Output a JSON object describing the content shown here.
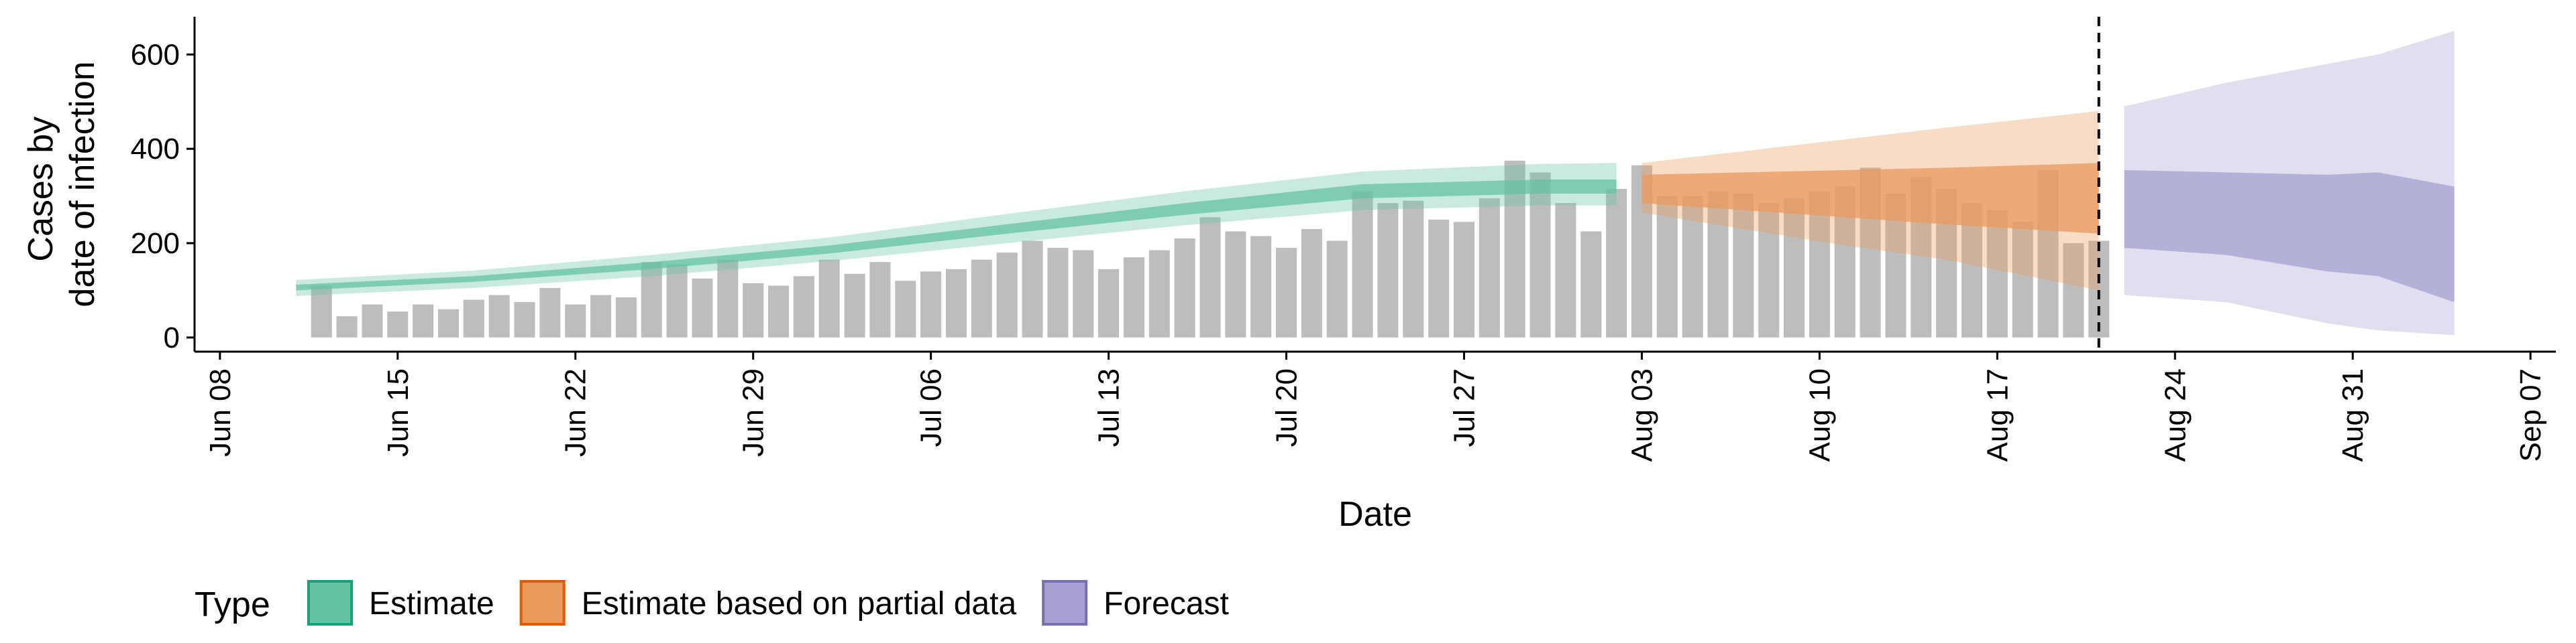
{
  "chart_data": {
    "type": "bar",
    "title": "",
    "xlabel": "Date",
    "ylabel_lines": [
      "Cases by",
      "date of infection"
    ],
    "x_ticks": [
      "Jun 08",
      "Jun 15",
      "Jun 22",
      "Jun 29",
      "Jul 06",
      "Jul 13",
      "Jul 20",
      "Jul 27",
      "Aug 03",
      "Aug 10",
      "Aug 17",
      "Aug 24",
      "Aug 31",
      "Sep 07"
    ],
    "x_tick_dates": [
      "2020-06-08",
      "2020-06-15",
      "2020-06-22",
      "2020-06-29",
      "2020-07-06",
      "2020-07-13",
      "2020-07-20",
      "2020-07-27",
      "2020-08-03",
      "2020-08-10",
      "2020-08-17",
      "2020-08-24",
      "2020-08-31",
      "2020-09-07"
    ],
    "y_ticks": [
      0,
      200,
      400,
      600
    ],
    "xlim": [
      "2020-06-07",
      "2020-09-08"
    ],
    "ylim": [
      -30,
      680
    ],
    "forecast_date": "2020-08-21",
    "legend": {
      "title": "Type",
      "position": "bottom",
      "entries": [
        {
          "label": "Estimate",
          "fill": "#66c2a5",
          "stroke": "#1b9e77"
        },
        {
          "label": "Estimate based on partial data",
          "fill": "#ea9a5d",
          "stroke": "#d95f02"
        },
        {
          "label": "Forecast",
          "fill": "#a6a1d2",
          "stroke": "#7570b3"
        }
      ]
    },
    "bars": {
      "color": "#bdbdbd",
      "dates": [
        "2020-06-12",
        "2020-06-13",
        "2020-06-14",
        "2020-06-15",
        "2020-06-16",
        "2020-06-17",
        "2020-06-18",
        "2020-06-19",
        "2020-06-20",
        "2020-06-21",
        "2020-06-22",
        "2020-06-23",
        "2020-06-24",
        "2020-06-25",
        "2020-06-26",
        "2020-06-27",
        "2020-06-28",
        "2020-06-29",
        "2020-06-30",
        "2020-07-01",
        "2020-07-02",
        "2020-07-03",
        "2020-07-04",
        "2020-07-05",
        "2020-07-06",
        "2020-07-07",
        "2020-07-08",
        "2020-07-09",
        "2020-07-10",
        "2020-07-11",
        "2020-07-12",
        "2020-07-13",
        "2020-07-14",
        "2020-07-15",
        "2020-07-16",
        "2020-07-17",
        "2020-07-18",
        "2020-07-19",
        "2020-07-20",
        "2020-07-21",
        "2020-07-22",
        "2020-07-23",
        "2020-07-24",
        "2020-07-25",
        "2020-07-26",
        "2020-07-27",
        "2020-07-28",
        "2020-07-29",
        "2020-07-30",
        "2020-07-31",
        "2020-08-01",
        "2020-08-02",
        "2020-08-03",
        "2020-08-04",
        "2020-08-05",
        "2020-08-06",
        "2020-08-07",
        "2020-08-08",
        "2020-08-09",
        "2020-08-10",
        "2020-08-11",
        "2020-08-12",
        "2020-08-13",
        "2020-08-14",
        "2020-08-15",
        "2020-08-16",
        "2020-08-17",
        "2020-08-18",
        "2020-08-19",
        "2020-08-20",
        "2020-08-21"
      ],
      "values": [
        110,
        45,
        70,
        55,
        70,
        60,
        80,
        90,
        75,
        105,
        70,
        90,
        85,
        160,
        155,
        125,
        165,
        115,
        110,
        130,
        165,
        135,
        160,
        120,
        140,
        145,
        165,
        180,
        205,
        190,
        185,
        145,
        170,
        185,
        210,
        255,
        225,
        215,
        190,
        230,
        205,
        310,
        285,
        290,
        250,
        245,
        295,
        375,
        350,
        285,
        225,
        315,
        365,
        300,
        300,
        310,
        305,
        285,
        295,
        310,
        320,
        360,
        305,
        340,
        315,
        285,
        270,
        245,
        355,
        200,
        205
      ]
    },
    "series": [
      {
        "name": "Estimate",
        "dates": [
          "2020-06-11",
          "2020-06-18",
          "2020-06-25",
          "2020-07-02",
          "2020-07-09",
          "2020-07-16",
          "2020-07-23",
          "2020-07-30",
          "2020-08-02"
        ],
        "inner_low": [
          100,
          118,
          145,
          178,
          220,
          260,
          295,
          305,
          305
        ],
        "inner_high": [
          112,
          130,
          160,
          195,
          240,
          285,
          325,
          335,
          335
        ],
        "outer_low": [
          88,
          105,
          130,
          162,
          200,
          238,
          270,
          280,
          280
        ],
        "outer_high": [
          122,
          142,
          175,
          212,
          262,
          310,
          352,
          368,
          370
        ]
      },
      {
        "name": "Estimate based on partial data",
        "dates": [
          "2020-08-03",
          "2020-08-07",
          "2020-08-11",
          "2020-08-15",
          "2020-08-21"
        ],
        "inner_low": [
          285,
          270,
          255,
          240,
          220
        ],
        "inner_high": [
          345,
          350,
          355,
          360,
          370
        ],
        "outer_low": [
          265,
          230,
          195,
          165,
          100
        ],
        "outer_high": [
          370,
          395,
          420,
          445,
          480
        ]
      },
      {
        "name": "Forecast",
        "dates": [
          "2020-08-22",
          "2020-08-26",
          "2020-08-30",
          "2020-09-01",
          "2020-09-04"
        ],
        "inner_low": [
          190,
          175,
          140,
          130,
          75
        ],
        "inner_high": [
          355,
          350,
          345,
          350,
          320
        ],
        "outer_low": [
          90,
          75,
          30,
          15,
          5
        ],
        "outer_high": [
          490,
          540,
          580,
          600,
          650
        ]
      }
    ]
  }
}
